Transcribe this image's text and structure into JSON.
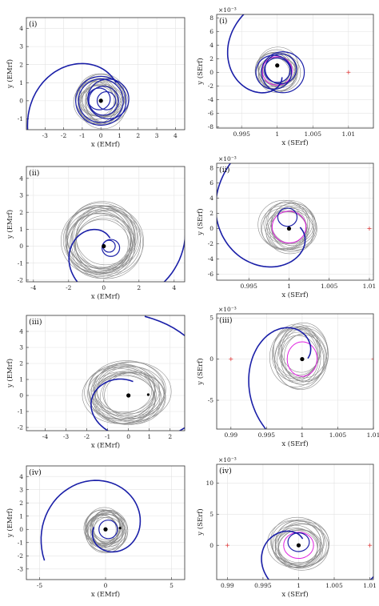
{
  "chart_data": [
    {
      "type": "line",
      "panel_label": "(i)",
      "frame": "EMrf",
      "xlabel": "x (EMrf)",
      "ylabel": "y (EMrf)",
      "xlim": [
        -4,
        4.5
      ],
      "ylim": [
        -1.6,
        4.6
      ],
      "xticks": [
        -3,
        -2,
        -1,
        0,
        1,
        2,
        3,
        4
      ],
      "yticks": [
        -1,
        0,
        1,
        2,
        3,
        4
      ],
      "xtick_labels": [
        "-3",
        "-2",
        "-1",
        "0",
        "1",
        "2",
        "3",
        "4"
      ],
      "ytick_labels": [
        "-1",
        "0",
        "1",
        "2",
        "3",
        "4"
      ],
      "exponent_label": "",
      "series": [
        {
          "role": "trajectory",
          "color": "#1a1fa8",
          "spiral": {
            "c": [
              0,
              0
            ],
            "r0": 1.3,
            "r1": 4.6,
            "a0": 0.0,
            "a1": 1.2,
            "turns": 0.7
          },
          "loops": [
            [
              0.0,
              0.0,
              1.2
            ],
            [
              0.15,
              0.0,
              0.8
            ],
            [
              0.4,
              0.1,
              1.1
            ],
            [
              -0.1,
              0.1,
              0.6
            ],
            [
              0.3,
              0.0,
              0.5
            ],
            [
              0.0,
              0.0,
              1.35
            ]
          ]
        },
        {
          "role": "orbits",
          "color": "#8c8c8c",
          "center": [
            0,
            0
          ],
          "radius": 1.1,
          "spread": 0.35,
          "count": 16
        }
      ],
      "markers": [
        {
          "role": "primary",
          "x": 0,
          "y": 0,
          "color": "#000000"
        }
      ],
      "reference_circle": null
    },
    {
      "type": "line",
      "panel_label": "(i)",
      "frame": "SErf",
      "xlabel": "x (SErf)",
      "ylabel": "y (SErf)",
      "xlim": [
        0.9915,
        1.0135
      ],
      "ylim": [
        -8.2,
        8.5
      ],
      "xticks": [
        0.995,
        1,
        1.005,
        1.01
      ],
      "yticks": [
        -8,
        -6,
        -4,
        -2,
        0,
        2,
        4,
        6,
        8
      ],
      "xtick_labels": [
        "0.995",
        "1",
        "1.005",
        "1.01"
      ],
      "ytick_labels": [
        "-8",
        "-6",
        "-4",
        "-2",
        "0",
        "2",
        "4",
        "6",
        "8"
      ],
      "exponent_label": "×10⁻³",
      "series": [
        {
          "role": "trajectory",
          "color": "#1a1fa8",
          "spiral": {
            "c": [
              1,
              0
            ],
            "r0": 0.001,
            "r1": 0.012,
            "a0": 1.7,
            "a1": 0.45,
            "turns": 0.1
          },
          "loops": [
            [
              0.9995,
              0.0,
              0.0025
            ],
            [
              1.0005,
              0.5,
              0.0022
            ],
            [
              1.0,
              0.3,
              0.0018
            ],
            [
              1.0008,
              0.0,
              0.003
            ]
          ]
        },
        {
          "role": "orbits",
          "color": "#8c8c8c",
          "center": [
            1.0,
            0.2
          ],
          "radius": 0.0025,
          "spread": 0.0007,
          "count": 14
        }
      ],
      "markers": [
        {
          "role": "primary",
          "x": 1.0,
          "y": 1.0,
          "color": "#000000"
        },
        {
          "role": "lagrange",
          "x": 1.01,
          "y": 0,
          "color": "#e04040"
        }
      ],
      "reference_circle": {
        "x": 1.0,
        "y": 0.2,
        "r": 0.0021,
        "color": "#e020e0"
      }
    },
    {
      "type": "line",
      "panel_label": "(ii)",
      "frame": "EMrf",
      "xlabel": "x (EMrf)",
      "ylabel": "y (EMrf)",
      "xlim": [
        -4.4,
        4.6
      ],
      "ylim": [
        -2.1,
        4.7
      ],
      "xticks": [
        -4,
        -2,
        0,
        2,
        4
      ],
      "yticks": [
        -2,
        -1,
        0,
        1,
        2,
        3,
        4
      ],
      "xtick_labels": [
        "-4",
        "-2",
        "0",
        "2",
        "4"
      ],
      "ytick_labels": [
        "-2",
        "-1",
        "0",
        "1",
        "2",
        "3",
        "4"
      ],
      "exponent_label": "",
      "series": [
        {
          "role": "trajectory",
          "color": "#1a1fa8",
          "spiral": {
            "c": [
              0,
              0
            ],
            "r0": 0.6,
            "r1": 4.7,
            "a0": 0.0,
            "a1": 2.05,
            "turns": 0.75
          },
          "loops": [
            [
              0.4,
              -0.1,
              0.5
            ],
            [
              0.3,
              0.0,
              0.35
            ]
          ]
        },
        {
          "role": "orbits",
          "color": "#8c8c8c",
          "center": [
            -0.1,
            0.3
          ],
          "radius": 1.8,
          "spread": 0.35,
          "count": 20
        }
      ],
      "markers": [
        {
          "role": "primary",
          "x": 0,
          "y": 0,
          "color": "#000000"
        }
      ],
      "reference_circle": null
    },
    {
      "type": "line",
      "panel_label": "(ii)",
      "frame": "SErf",
      "xlabel": "x (SErf)",
      "ylabel": "y (SErf)",
      "xlim": [
        0.991,
        1.0105
      ],
      "ylim": [
        -6.8,
        8.6
      ],
      "xticks": [
        0.995,
        1,
        1.005,
        1.01
      ],
      "yticks": [
        -6,
        -4,
        -2,
        0,
        2,
        4,
        6,
        8
      ],
      "xtick_labels": [
        "0.995",
        "1",
        "1.005",
        "1.01"
      ],
      "ytick_labels": [
        "-6",
        "-4",
        "-2",
        "0",
        "2",
        "4",
        "6",
        "8"
      ],
      "exponent_label": "×10⁻³",
      "series": [
        {
          "role": "trajectory",
          "color": "#1a1fa8",
          "spiral": {
            "c": [
              1,
              0
            ],
            "r0": 0.0014,
            "r1": 0.0125,
            "a0": 2.0,
            "a1": 0.6,
            "turns": 0.1
          },
          "loops": [
            [
              0.9998,
              1.5,
              0.0012
            ]
          ]
        },
        {
          "role": "orbits",
          "color": "#8c8c8c",
          "center": [
            1.0,
            0.2
          ],
          "radius": 0.0028,
          "spread": 0.0008,
          "count": 14
        }
      ],
      "markers": [
        {
          "role": "primary",
          "x": 1.0,
          "y": 0,
          "color": "#000000"
        },
        {
          "role": "lagrange",
          "x": 0.99,
          "y": 0,
          "color": "#e04040"
        },
        {
          "role": "lagrange",
          "x": 1.01,
          "y": 0,
          "color": "#e04040"
        }
      ],
      "reference_circle": {
        "x": 1.0,
        "y": 0.2,
        "r": 0.0021,
        "color": "#e020e0"
      }
    },
    {
      "type": "line",
      "panel_label": "(iii)",
      "frame": "EMrf",
      "xlabel": "x (EMrf)",
      "ylabel": "y (EMrf)",
      "xlim": [
        -4.9,
        2.7
      ],
      "ylim": [
        -2.2,
        5.0
      ],
      "xticks": [
        -4,
        -3,
        -2,
        -1,
        0,
        1,
        2
      ],
      "yticks": [
        -2,
        -1,
        0,
        1,
        2,
        3,
        4
      ],
      "xtick_labels": [
        "-4",
        "-3",
        "-2",
        "-1",
        "0",
        "1",
        "2"
      ],
      "ytick_labels": [
        "-2",
        "-1",
        "0",
        "1",
        "2",
        "3",
        "4"
      ],
      "exponent_label": "",
      "series": [
        {
          "role": "trajectory",
          "color": "#1a1fa8",
          "spiral": {
            "c": [
              0,
              0
            ],
            "r0": 0.9,
            "r1": 5.0,
            "a0": 0.2,
            "a1": 2.45,
            "turns": 0.55
          },
          "loops": []
        },
        {
          "role": "orbits",
          "color": "#8c8c8c",
          "center": [
            -0.1,
            0.1
          ],
          "radius": 1.6,
          "spread": 0.4,
          "count": 20
        }
      ],
      "markers": [
        {
          "role": "primary",
          "x": 0,
          "y": 0,
          "color": "#000000"
        },
        {
          "role": "secondary",
          "x": 0.95,
          "y": 0.05,
          "color": "#000000"
        }
      ],
      "reference_circle": null
    },
    {
      "type": "line",
      "panel_label": "(iii)",
      "frame": "SErf",
      "xlabel": "x (SErf)",
      "ylabel": "y (SErf)",
      "xlim": [
        0.988,
        1.01
      ],
      "ylim": [
        -8.5,
        5.5
      ],
      "xticks": [
        0.99,
        0.995,
        1,
        1.005,
        1.01
      ],
      "yticks": [
        -5,
        0,
        5
      ],
      "xtick_labels": [
        "0.99",
        "0.995",
        "1",
        "1.005",
        "1.01"
      ],
      "ytick_labels": [
        "-5",
        "0",
        "5"
      ],
      "exponent_label": "×10⁻³",
      "series": [
        {
          "role": "trajectory",
          "color": "#1a1fa8",
          "spiral": {
            "c": [
              1,
              0
            ],
            "r0": 0.0008,
            "r1": 0.012,
            "a0": 2.0,
            "a1": 3.55,
            "turns": 0.08
          },
          "loops": []
        },
        {
          "role": "orbits",
          "color": "#8c8c8c",
          "center": [
            0.9997,
            0.5
          ],
          "radius": 0.0032,
          "spread": 0.0008,
          "count": 14
        }
      ],
      "markers": [
        {
          "role": "primary",
          "x": 1.0,
          "y": 0,
          "color": "#000000"
        },
        {
          "role": "lagrange",
          "x": 0.99,
          "y": 0,
          "color": "#e04040"
        },
        {
          "role": "lagrange",
          "x": 1.01,
          "y": 0,
          "color": "#e04040"
        }
      ],
      "reference_circle": {
        "x": 1.0,
        "y": 0.0,
        "r": 0.0021,
        "color": "#e020e0"
      }
    },
    {
      "type": "line",
      "panel_label": "(iv)",
      "frame": "EMrf",
      "xlabel": "x (EMrf)",
      "ylabel": "y (EMrf)",
      "xlim": [
        -6.0,
        6.0
      ],
      "ylim": [
        -3.8,
        4.8
      ],
      "xticks": [
        -5,
        0,
        5
      ],
      "yticks": [
        -3,
        -2,
        -1,
        0,
        1,
        2,
        3,
        4
      ],
      "xtick_labels": [
        "-5",
        "0",
        "5"
      ],
      "ytick_labels": [
        "-3",
        "-2",
        "-1",
        "0",
        "1",
        "2",
        "3",
        "4"
      ],
      "exponent_label": "",
      "series": [
        {
          "role": "trajectory",
          "color": "#1a1fa8",
          "spiral": {
            "c": [
              0,
              0
            ],
            "r0": 0.9,
            "r1": 5.2,
            "a0": 0.3,
            "a1": 3.15,
            "turns": 1.6
          },
          "loops": [
            [
              0.2,
              0.0,
              0.7
            ]
          ]
        },
        {
          "role": "orbits",
          "color": "#8c8c8c",
          "center": [
            0,
            0
          ],
          "radius": 1.3,
          "spread": 0.35,
          "count": 20
        }
      ],
      "markers": [
        {
          "role": "primary",
          "x": 0,
          "y": 0,
          "color": "#000000"
        },
        {
          "role": "secondary",
          "x": 1.1,
          "y": 0.1,
          "color": "#000000"
        }
      ],
      "reference_circle": null
    },
    {
      "type": "line",
      "panel_label": "(iv)",
      "frame": "SErf",
      "xlabel": "x (SErf)",
      "ylabel": "y (SErf)",
      "xlim": [
        0.9885,
        1.0105
      ],
      "ylim": [
        -5.5,
        13.0
      ],
      "xticks": [
        0.99,
        0.995,
        1,
        1.005,
        1.01
      ],
      "yticks": [
        0,
        5,
        10
      ],
      "xtick_labels": [
        "0.99",
        "0.995",
        "1",
        "1.005",
        "1.01"
      ],
      "ytick_labels": [
        "0",
        "5",
        "10"
      ],
      "exponent_label": "×10⁻³",
      "series": [
        {
          "role": "trajectory",
          "color": "#1a1fa8",
          "spiral": {
            "c": [
              1,
              0
            ],
            "r0": 0.0012,
            "r1": 0.0125,
            "a0": 0.3,
            "a1": 1.95,
            "turns": 0.1
          },
          "loops": [
            [
              1.0,
              0.5,
              0.0015
            ]
          ]
        },
        {
          "role": "orbits",
          "color": "#8c8c8c",
          "center": [
            1.0,
            0.0
          ],
          "radius": 0.0033,
          "spread": 0.0008,
          "count": 14
        }
      ],
      "markers": [
        {
          "role": "primary",
          "x": 1.0,
          "y": 0,
          "color": "#000000"
        },
        {
          "role": "lagrange",
          "x": 0.99,
          "y": 0,
          "color": "#e04040"
        },
        {
          "role": "lagrange",
          "x": 1.01,
          "y": 0,
          "color": "#e04040"
        }
      ],
      "reference_circle": {
        "x": 1.0,
        "y": 0.0,
        "r": 0.0021,
        "color": "#e020e0"
      }
    }
  ]
}
